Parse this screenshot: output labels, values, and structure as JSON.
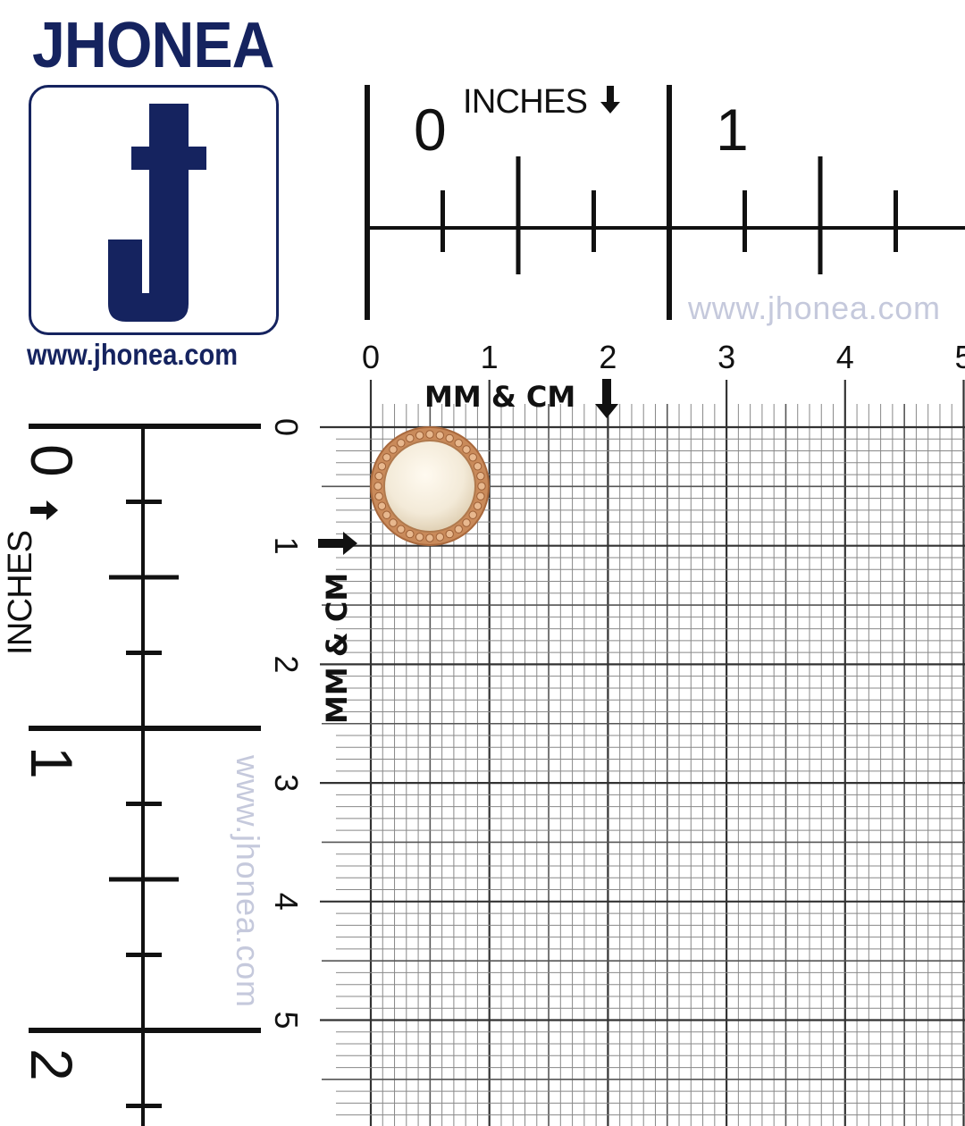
{
  "brand": {
    "name": "JHONEA",
    "logo_letter": "J",
    "website": "www.jhonea.com",
    "brand_color": "#15235f"
  },
  "watermark": "www.jhonea.com",
  "inch_ruler_top": {
    "label": "INCHES",
    "arrow": "down-arrow-icon",
    "numbers": [
      "0",
      "1"
    ]
  },
  "inch_ruler_left": {
    "label": "INCHES",
    "arrow": "right-arrow-icon",
    "numbers": [
      "0",
      "1",
      "2"
    ]
  },
  "metric_grid": {
    "label": "MM & CM",
    "top_numbers": [
      "0",
      "1",
      "2",
      "3",
      "4",
      "5"
    ],
    "left_numbers": [
      "0",
      "1",
      "2",
      "3",
      "4",
      "5"
    ]
  },
  "product": {
    "type": "pearl button with gold beaded rim",
    "diameter_cm": 1.0,
    "rim_color": "#c98a5a",
    "pearl_color": "#f3ead8"
  }
}
